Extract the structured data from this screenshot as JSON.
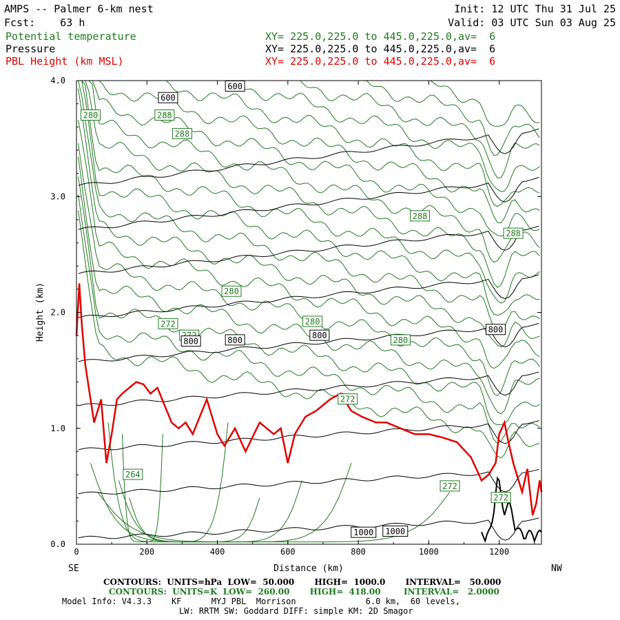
{
  "header": {
    "title": "AMPS -- Palmer 6-km nest",
    "fcst": "Fcst:    63 h",
    "init": "Init: 12 UTC Thu 31 Jul 25",
    "valid": "Valid: 03 UTC Sun 03 Aug 25",
    "fields": [
      {
        "name": "Potential temperature",
        "xy": "XY= 225.0,225.0 to 445.0,225.0,av=  6",
        "color": "#1e7a1e"
      },
      {
        "name": "Pressure",
        "xy": "XY= 225.0,225.0 to 445.0,225.0,av=  6",
        "color": "#000000"
      },
      {
        "name": "PBL Height (km MSL)",
        "xy": "XY= 225.0,225.0 to 445.0,225.0,av=  6",
        "color": "#e00000"
      }
    ]
  },
  "chart_data": {
    "type": "line",
    "xlabel": "Distance (km)",
    "ylabel": "Height (km)",
    "xlim": [
      0,
      1320
    ],
    "ylim": [
      0,
      4.0
    ],
    "x_ticks": [
      "0",
      "200",
      "400",
      "600",
      "800",
      "1000",
      "1200"
    ],
    "y_ticks": [
      "0.0",
      "1.0",
      "2.0",
      "3.0",
      "4.0"
    ],
    "left_end_label": "SE",
    "right_end_label": "NW",
    "pbl_series": {
      "name": "PBL Height (km MSL)",
      "color": "#e00000",
      "x": [
        0,
        8,
        15,
        25,
        35,
        50,
        70,
        85,
        100,
        115,
        130,
        150,
        170,
        190,
        210,
        230,
        250,
        270,
        290,
        310,
        330,
        350,
        370,
        400,
        420,
        450,
        480,
        520,
        560,
        580,
        600,
        620,
        650,
        680,
        700,
        720,
        750,
        780,
        810,
        850,
        880,
        920,
        960,
        1000,
        1040,
        1080,
        1120,
        1150,
        1170,
        1190,
        1200,
        1215,
        1225,
        1240,
        1250,
        1265,
        1280,
        1295,
        1305,
        1315,
        1320
      ],
      "y": [
        1.8,
        2.25,
        1.9,
        1.55,
        1.35,
        1.05,
        1.25,
        0.7,
        0.95,
        1.25,
        1.3,
        1.35,
        1.4,
        1.38,
        1.3,
        1.35,
        1.2,
        1.05,
        1.0,
        1.05,
        0.95,
        1.1,
        1.25,
        0.95,
        0.85,
        1.0,
        0.8,
        1.05,
        0.95,
        1.0,
        0.7,
        0.95,
        1.1,
        1.15,
        1.2,
        1.25,
        1.3,
        1.15,
        1.1,
        1.05,
        1.05,
        1.0,
        0.95,
        0.95,
        0.92,
        0.88,
        0.75,
        0.55,
        0.6,
        0.7,
        0.95,
        1.05,
        0.9,
        0.7,
        0.6,
        0.45,
        0.65,
        0.25,
        0.35,
        0.55,
        0.45
      ]
    },
    "theta_contours": {
      "color": "#1e7a1e",
      "labels": [
        {
          "text": "280",
          "x": 40,
          "y": 3.7
        },
        {
          "text": "288",
          "x": 250,
          "y": 3.7
        },
        {
          "text": "288",
          "x": 300,
          "y": 3.54
        },
        {
          "text": "288",
          "x": 975,
          "y": 2.83
        },
        {
          "text": "288",
          "x": 1240,
          "y": 2.68
        },
        {
          "text": "280",
          "x": 440,
          "y": 2.18
        },
        {
          "text": "280",
          "x": 670,
          "y": 1.92
        },
        {
          "text": "280",
          "x": 920,
          "y": 1.76
        },
        {
          "text": "272",
          "x": 260,
          "y": 1.9
        },
        {
          "text": "272",
          "x": 320,
          "y": 1.8
        },
        {
          "text": "272",
          "x": 770,
          "y": 1.25
        },
        {
          "text": "272",
          "x": 1060,
          "y": 0.5
        },
        {
          "text": "272",
          "x": 1205,
          "y": 0.4
        },
        {
          "text": "264",
          "x": 160,
          "y": 0.6
        }
      ]
    },
    "pressure_contours": {
      "color": "#000000",
      "labels": [
        {
          "text": "600",
          "x": 450,
          "y": 3.95
        },
        {
          "text": "600",
          "x": 260,
          "y": 3.85
        },
        {
          "text": "800",
          "x": 325,
          "y": 1.75
        },
        {
          "text": "800",
          "x": 450,
          "y": 1.76
        },
        {
          "text": "800",
          "x": 690,
          "y": 1.8
        },
        {
          "text": "800",
          "x": 1190,
          "y": 1.85
        },
        {
          "text": "1000",
          "x": 815,
          "y": 0.1
        },
        {
          "text": "1000",
          "x": 905,
          "y": 0.11
        }
      ]
    }
  },
  "footer": {
    "line1": "CONTOURS:  UNITS=hPa  LOW=  50.000       HIGH=  1000.0       INTERVAL=   50.000",
    "line2": "CONTOURS:  UNITS=K  LOW=  260.00       HIGH=  418.00        INTERVAL=   2.0000",
    "line3": "Model Info: V4.3.3    KF      MYJ PBL  Morrison              6.0 km,  60 levels,",
    "line4": "LW: RRTM SW: Goddard DIFF: simple KM: 2D Smagor"
  }
}
